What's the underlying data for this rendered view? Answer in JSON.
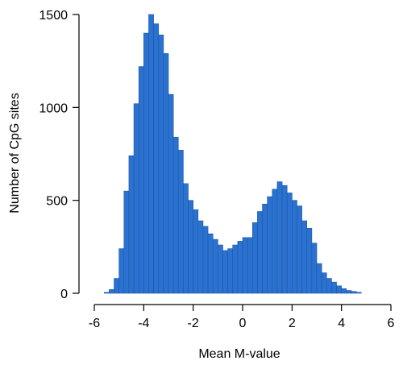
{
  "chart_data": {
    "type": "bar",
    "xlabel": "Mean M-value",
    "ylabel": "Number of CpG sites",
    "xlim": [
      -6,
      6
    ],
    "ylim": [
      0,
      1500
    ],
    "xticks": [
      -6,
      -4,
      -2,
      0,
      2,
      4,
      6
    ],
    "yticks": [
      0,
      500,
      1000,
      1500
    ],
    "bar_color": "#2b72d0",
    "bin_width": 0.2,
    "bins": [
      {
        "x": -5.5,
        "value": 5
      },
      {
        "x": -5.3,
        "value": 20
      },
      {
        "x": -5.1,
        "value": 80
      },
      {
        "x": -4.9,
        "value": 240
      },
      {
        "x": -4.7,
        "value": 550
      },
      {
        "x": -4.5,
        "value": 740
      },
      {
        "x": -4.3,
        "value": 1020
      },
      {
        "x": -4.1,
        "value": 1220
      },
      {
        "x": -3.9,
        "value": 1400
      },
      {
        "x": -3.7,
        "value": 1500
      },
      {
        "x": -3.5,
        "value": 1450
      },
      {
        "x": -3.3,
        "value": 1390
      },
      {
        "x": -3.1,
        "value": 1290
      },
      {
        "x": -2.9,
        "value": 1070
      },
      {
        "x": -2.7,
        "value": 840
      },
      {
        "x": -2.5,
        "value": 770
      },
      {
        "x": -2.3,
        "value": 590
      },
      {
        "x": -2.1,
        "value": 500
      },
      {
        "x": -1.9,
        "value": 450
      },
      {
        "x": -1.7,
        "value": 390
      },
      {
        "x": -1.5,
        "value": 360
      },
      {
        "x": -1.3,
        "value": 320
      },
      {
        "x": -1.1,
        "value": 290
      },
      {
        "x": -0.9,
        "value": 260
      },
      {
        "x": -0.7,
        "value": 230
      },
      {
        "x": -0.5,
        "value": 240
      },
      {
        "x": -0.3,
        "value": 260
      },
      {
        "x": -0.1,
        "value": 280
      },
      {
        "x": 0.1,
        "value": 300
      },
      {
        "x": 0.3,
        "value": 300
      },
      {
        "x": 0.5,
        "value": 380
      },
      {
        "x": 0.7,
        "value": 440
      },
      {
        "x": 0.9,
        "value": 480
      },
      {
        "x": 1.1,
        "value": 520
      },
      {
        "x": 1.3,
        "value": 560
      },
      {
        "x": 1.5,
        "value": 600
      },
      {
        "x": 1.7,
        "value": 580
      },
      {
        "x": 1.9,
        "value": 540
      },
      {
        "x": 2.1,
        "value": 500
      },
      {
        "x": 2.3,
        "value": 470
      },
      {
        "x": 2.5,
        "value": 390
      },
      {
        "x": 2.7,
        "value": 350
      },
      {
        "x": 2.9,
        "value": 270
      },
      {
        "x": 3.1,
        "value": 160
      },
      {
        "x": 3.3,
        "value": 110
      },
      {
        "x": 3.5,
        "value": 80
      },
      {
        "x": 3.7,
        "value": 60
      },
      {
        "x": 3.9,
        "value": 40
      },
      {
        "x": 4.1,
        "value": 25
      },
      {
        "x": 4.3,
        "value": 15
      },
      {
        "x": 4.5,
        "value": 10
      },
      {
        "x": 4.7,
        "value": 5
      }
    ]
  }
}
